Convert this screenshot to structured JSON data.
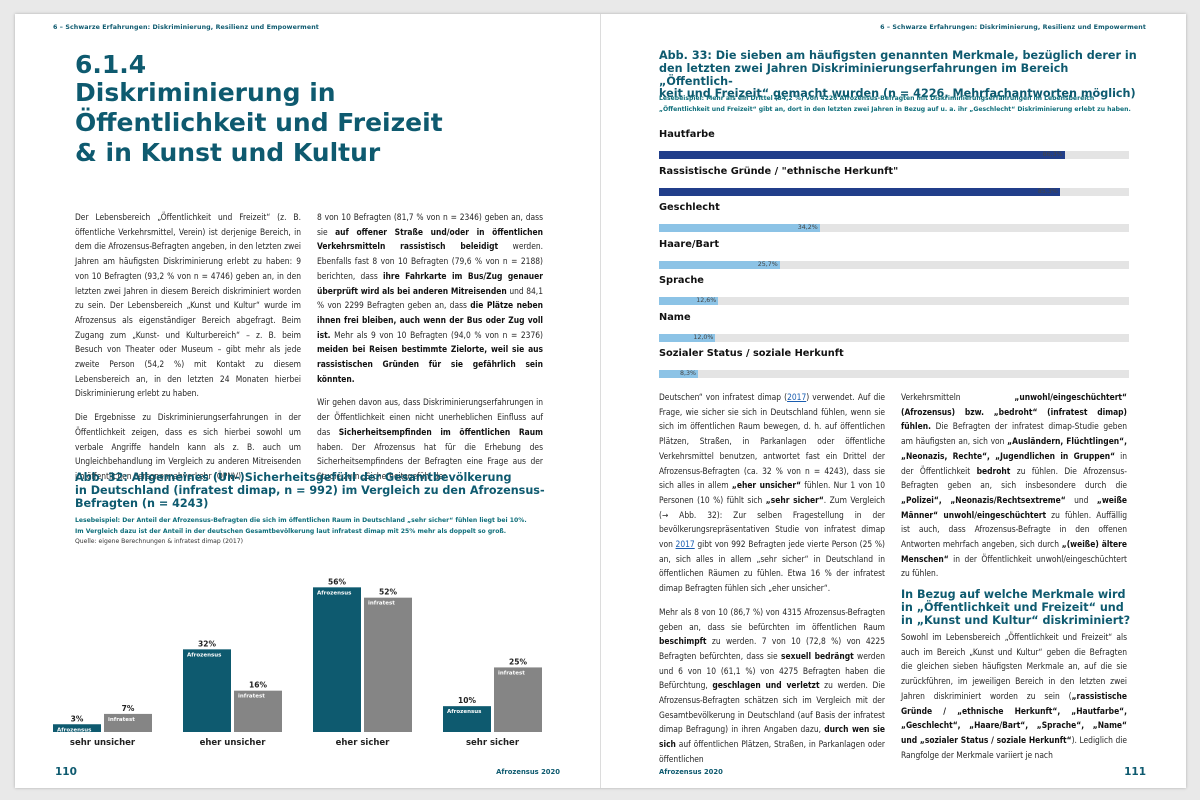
{
  "running_header": "6 – Schwarze Erfahrungen: Diskriminierung, Resilienz und Empowerment",
  "left_page": {
    "section_number": "6.1.4",
    "section_title_lines": [
      "Diskriminierung in",
      "Öffentlichkeit und Freizeit",
      "& in Kunst und Kultur"
    ],
    "page_number": "110",
    "footer_publication": "Afrozensus 2020",
    "fig32": {
      "title_lines": [
        "Abb. 32: Allgemeines (Un-)Sicherheitsgefühl der Gesamtbevölkerung",
        "in Deutschland (infratest dimap, n = 992) im Vergleich zu den Afrozensus-",
        "Befragten (n = 4243)"
      ],
      "note_lines": [
        "Lesebeispiel: Der Anteil der Afrozensus-Befragten die sich im öffentlichen Raum in Deutschland „sehr sicher“ fühlen liegt bei 10%.",
        "Im Vergleich dazu ist der Anteil in der deutschen Gesamtbevölkerung laut infratest dimap mit 25% mehr als doppelt so groß."
      ],
      "source": "Quelle: eigene Berechnungen & infratest dimap (2017)"
    }
  },
  "right_page": {
    "page_number": "111",
    "footer_publication": "Afrozensus 2020",
    "fig33": {
      "title_lines": [
        "Abb. 33: Die sieben am häufigsten genannten Merkmale, bezüglich derer in",
        "den letzten zwei Jahren Diskriminierungserfahrungen im Bereich „Öffentlich-",
        "keit und Freizeit“ gemacht wurden (n = 4226, Mehrfachantworten möglich)"
      ],
      "note_lines": [
        "Lesebeispiel: Mehr als ein Drittel (34,2 %) von 4226 Afrozensus-Befragten mit Diskriminierungserfahrungen im Lebensbereich",
        "„Öffentlichkeit und Freizeit“ gibt an, dort in den letzten zwei Jahren in Bezug auf u. a. ihr „Geschlecht“ Diskriminierung erlebt zu haben."
      ]
    },
    "subheading_lines": [
      "In Bezug auf welche Merkmale wird",
      "in „Öffentlichkeit und Freizeit“ und",
      "in „Kunst und Kultur“ diskriminiert?"
    ]
  },
  "colors": {
    "teal": "#0e5a6f",
    "grey_bar": "#858585",
    "navy": "#213e8a",
    "light_blue": "#8cc3e6",
    "track": "#e4e4e4"
  },
  "chart_data": [
    {
      "type": "bar",
      "categories": [
        "sehr unsicher",
        "eher unsicher",
        "eher sicher",
        "sehr sicher"
      ],
      "series": [
        {
          "name": "Afrozensus",
          "values": [
            3,
            32,
            56,
            10
          ],
          "labels": [
            "3%",
            "32%",
            "56%",
            "10%"
          ]
        },
        {
          "name": "infratest",
          "values": [
            7,
            16,
            52,
            25
          ],
          "labels": [
            "7%",
            "16%",
            "52%",
            "25%"
          ]
        }
      ],
      "ylim": [
        0,
        60
      ]
    },
    {
      "type": "bar",
      "orientation": "horizontal",
      "categories": [
        "Hautfarbe",
        "Rassistische Gründe / \"ethnische Herkunft\"",
        "Geschlecht",
        "Haare/Bart",
        "Sprache",
        "Name",
        "Sozialer Status / soziale Herkunft"
      ],
      "values": [
        86.3,
        85.3,
        34.2,
        25.7,
        12.6,
        12.0,
        8.3
      ],
      "value_labels": [
        "86,3%",
        "85,3%",
        "34,2%",
        "25,7%",
        "12,6%",
        "12,0%",
        "8,3%"
      ],
      "xlim": [
        0,
        100
      ]
    }
  ],
  "texts": {
    "left_col1": "Der Lebensbereich „Öffentlichkeit und Freizeit“ (z. B. öffentliche Verkehrsmittel, Verein) ist derjenige Bereich, in dem die Afrozensus-Befragten angeben, in den letzten zwei Jahren am häufigsten Diskriminierung erlebt zu haben: 9 von 10 Befragten (93,2 % von n = 4746) geben an, in den letzten zwei Jahren in diesem Bereich diskriminiert worden zu sein. Der Lebensbereich „Kunst und Kultur“ wurde im Afrozensus als eigenständiger Bereich abgefragt. Beim Zugang zum „Kunst- und Kulturbereich“ – z. B. beim Besuch von Theater oder Museum – gibt mehr als jede zweite Person (54,2 %) mit Kontakt zu diesem Lebensbereich an, in den letzten 24 Monaten hierbei Diskriminierung erlebt zu haben.",
    "left_col1_p2": "Die Ergebnisse zu Diskriminierungserfahrungen in der Öffentlichkeit zeigen, dass es sich hierbei sowohl um verbale Angriffe handeln kann als z. B. auch um Ungleichbehandlung im Vergleich zu anderen Mitreisenden im öffentlichen Personennahverkehr (ÖPNV).",
    "left_col2_a": "8 von 10 Befragten (81,7 % von n = 2346) geben an, dass sie ",
    "left_col2_b": "auf offener Straße und/oder in öffentlichen Verkehrsmitteln rassistisch beleidigt",
    "left_col2_c": " werden. Ebenfalls fast 8 von 10 Befragten (79,6 % von n = 2188) berichten, dass ",
    "left_col2_d": "ihre Fahrkarte im Bus/Zug genauer überprüft wird als bei anderen Mitreisenden",
    "left_col2_e": " und 84,1 % von 2299 Befragten geben an, dass ",
    "left_col2_f": "die Plätze neben ihnen frei bleiben, auch wenn der Bus oder Zug voll ist.",
    "left_col2_g": " Mehr als 9 von 10 Befragten (94,0 % von n = 2376) ",
    "left_col2_h": "meiden bei Reisen bestimmte Zielorte, weil sie aus rassistischen Gründen für sie gefährlich sein könnten.",
    "left_col2_p2a": "Wir gehen davon aus, dass Diskriminierungserfahrungen in der Öffentlichkeit einen nicht unerheblichen Einfluss auf das ",
    "left_col2_p2b": "Sicherheitsempfinden im öffentlichen Raum",
    "left_col2_p2c": " haben. Der Afrozensus hat für die Erhebung des Sicherheitsempfindens der Befragten eine Frage aus der Studie zum „Sicherheitsgefühl der",
    "right_col1_a": "Deutschen“ von infratest dimap (",
    "right_col1_link1": "2017",
    "right_col1_b": ") verwendet. Auf die Frage, wie sicher sie sich in Deutschland fühlen, wenn sie sich im öffentlichen Raum bewegen, d. h. auf öffentlichen Plätzen, Straßen, in Parkanlagen oder öffentliche Verkehrsmittel benutzen, antwortet fast ein Drittel der Afrozensus-Befragten (ca. 32 % von n = 4243), dass sie sich alles in allem ",
    "right_col1_c": "„eher unsicher“",
    "right_col1_d": " fühlen. Nur 1 von 10 Personen (10 %) fühlt sich ",
    "right_col1_e": "„sehr sicher“",
    "right_col1_f": ". Zum Vergleich (→ Abb. 32): Zur selben Fragestellung in der bevölkerungsrepräsentativen Studie von infratest dimap von ",
    "right_col1_link2": "2017",
    "right_col1_g": " gibt von 992 Befragten jede vierte Person (25 %) an, sich alles in allem „sehr sicher“ in Deutschland in öffentlichen Räumen zu fühlen. Etwa 16 % der infratest dimap Befragten fühlen sich „eher unsicher“.",
    "right_col1_p2a": "Mehr als 8 von 10 (86,7 %) von 4315 Afrozensus-Befragten geben an, dass sie befürchten im öffentlichen Raum ",
    "right_col1_p2b": "beschimpft",
    "right_col1_p2c": " zu werden. 7 von 10 (72,8 %) von 4225 Befragten befürchten, dass sie ",
    "right_col1_p2d": "sexuell bedrängt",
    "right_col1_p2e": " werden und 6 von 10 (61,1 %) von 4275 Befragten haben die Befürchtung, ",
    "right_col1_p2f": "geschlagen und verletzt",
    "right_col1_p2g": " zu werden. Die Afrozensus-Befragten schätzen sich im Vergleich mit der Gesamtbevölkerung in Deutschland (auf Basis der infratest dimap Befragung) in ihren Angaben dazu, ",
    "right_col1_p2h": "durch wen sie sich",
    "right_col1_p2i": " auf öffentlichen Plätzen, Straßen, in Parkanlagen oder öffentlichen",
    "right_col2_a": "Verkehrsmitteln ",
    "right_col2_b": "„unwohl/eingeschüchtert“ (Afrozensus) bzw. „bedroht“ (infratest dimap) fühlen.",
    "right_col2_c": " Die Befragten der infratest dimap-Studie geben am häufigsten an, sich von ",
    "right_col2_d": "„Ausländern, Flüchtlingen“, „Neonazis, Rechte“, „Jugendlichen in Gruppen“",
    "right_col2_e": " in der Öffentlichkeit ",
    "right_col2_f": "bedroht",
    "right_col2_g": " zu fühlen. Die Afrozensus-Befragten geben an, sich insbesondere durch die ",
    "right_col2_h": "„Polizei“, „Neonazis/Rechtsextreme“",
    "right_col2_i": " und ",
    "right_col2_j": "„weiße Männer“ unwohl/eingeschüchtert",
    "right_col2_k": " zu fühlen. Auffällig ist auch, dass Afrozensus-Befragte in den offenen Antworten mehrfach angeben, sich durch ",
    "right_col2_l": "„(weiße) ältere Menschen“",
    "right_col2_m": " in der Öffentlichkeit unwohl/eingeschüchtert zu fühlen.",
    "right_col2_p2a": "Sowohl im Lebensbereich „Öffentlichkeit und Freizeit“ als auch im Bereich „Kunst und Kultur“ geben die Befragten die gleichen sieben häufigsten Merkmale an, auf die sie zurückführen, im jeweiligen Bereich in den letzten zwei Jahren diskriminiert worden zu sein (",
    "right_col2_p2b": "„rassistische Gründe / „ethnische Herkunft“, „Hautfarbe“, „Geschlecht“, „Haare/Bart“, „Sprache“, „Name“ und „sozialer Status / soziale Herkunft“",
    "right_col2_p2c": "). Lediglich die Rangfolge der Merkmale variiert je nach"
  }
}
